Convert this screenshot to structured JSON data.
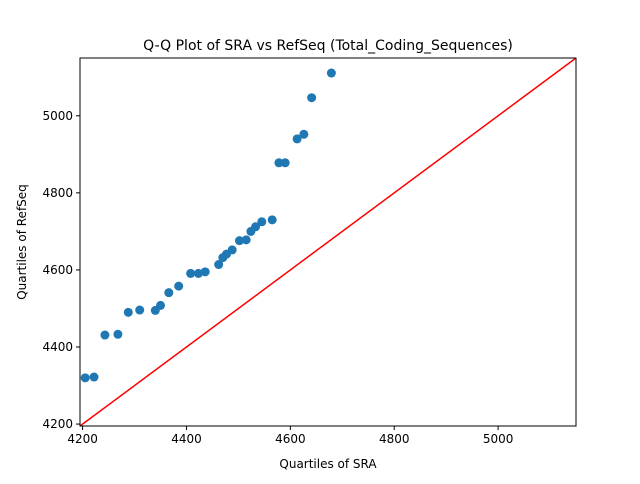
{
  "chart_data": {
    "type": "scatter",
    "title": "Q-Q Plot of SRA vs RefSeq (Total_Coding_Sequences)",
    "xlabel": "Quartiles of SRA",
    "ylabel": "Quartiles of RefSeq",
    "xlim": [
      4195,
      5150
    ],
    "ylim": [
      4195,
      5150
    ],
    "xticks": [
      4200,
      4400,
      4600,
      4800,
      5000
    ],
    "yticks": [
      4200,
      4400,
      4600,
      4800,
      5000
    ],
    "grid": false,
    "marker_color": "#1f77b4",
    "reference_line": {
      "from": [
        4195,
        4195
      ],
      "to": [
        5150,
        5150
      ],
      "color": "#ff0000"
    },
    "points": [
      [
        4205,
        4320
      ],
      [
        4222,
        4322
      ],
      [
        4243,
        4431
      ],
      [
        4268,
        4433
      ],
      [
        4288,
        4490
      ],
      [
        4310,
        4496
      ],
      [
        4340,
        4495
      ],
      [
        4350,
        4508
      ],
      [
        4366,
        4541
      ],
      [
        4385,
        4558
      ],
      [
        4408,
        4591
      ],
      [
        4423,
        4591
      ],
      [
        4436,
        4595
      ],
      [
        4462,
        4614
      ],
      [
        4470,
        4632
      ],
      [
        4477,
        4641
      ],
      [
        4488,
        4652
      ],
      [
        4502,
        4676
      ],
      [
        4515,
        4678
      ],
      [
        4524,
        4700
      ],
      [
        4533,
        4712
      ],
      [
        4545,
        4725
      ],
      [
        4565,
        4730
      ],
      [
        4578,
        4878
      ],
      [
        4590,
        4878
      ],
      [
        4613,
        4940
      ],
      [
        4626,
        4952
      ],
      [
        4641,
        5047
      ],
      [
        4679,
        5111
      ]
    ]
  }
}
